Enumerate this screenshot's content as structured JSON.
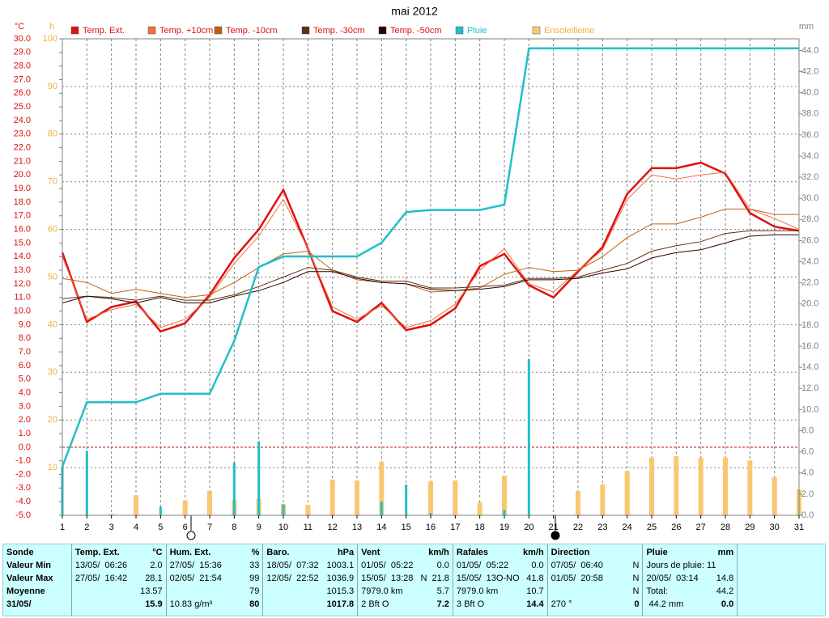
{
  "chart_data": {
    "type": "line",
    "title": "mai 2012",
    "ylabel": "°C",
    "y2label": "mm",
    "y3label": "h",
    "x": [
      1,
      2,
      3,
      4,
      5,
      6,
      7,
      8,
      9,
      10,
      11,
      12,
      13,
      14,
      15,
      16,
      17,
      18,
      19,
      20,
      21,
      22,
      23,
      24,
      25,
      26,
      27,
      28,
      29,
      30,
      31
    ],
    "xlim": [
      1,
      31
    ],
    "xticks": [
      1,
      2,
      3,
      4,
      5,
      6,
      7,
      8,
      9,
      10,
      11,
      12,
      13,
      14,
      15,
      16,
      17,
      18,
      19,
      20,
      21,
      22,
      23,
      24,
      25,
      26,
      27,
      28,
      29,
      30,
      31
    ],
    "ylim": [
      -5,
      30
    ],
    "yticks": [
      {
        "value": -5,
        "label": "-5.0"
      },
      {
        "value": -4,
        "label": "-4.0"
      },
      {
        "value": -3,
        "label": "-3.0"
      },
      {
        "value": -2,
        "label": "-2.0"
      },
      {
        "value": -1,
        "label": "-1.0"
      },
      {
        "value": 0,
        "label": "0.0"
      },
      {
        "value": 1,
        "label": "1.0"
      },
      {
        "value": 2,
        "label": "2.0"
      },
      {
        "value": 3,
        "label": "3.0"
      },
      {
        "value": 4,
        "label": "4.0"
      },
      {
        "value": 5,
        "label": "5.0"
      },
      {
        "value": 6,
        "label": "6.0"
      },
      {
        "value": 7,
        "label": "7.0"
      },
      {
        "value": 8,
        "label": "8.0"
      },
      {
        "value": 9,
        "label": "9.0"
      },
      {
        "value": 10,
        "label": "10.0"
      },
      {
        "value": 11,
        "label": "11.0"
      },
      {
        "value": 12,
        "label": "12.0"
      },
      {
        "value": 13,
        "label": "13.0"
      },
      {
        "value": 14,
        "label": "14.0"
      },
      {
        "value": 15,
        "label": "15.0"
      },
      {
        "value": 16,
        "label": "16.0"
      },
      {
        "value": 17,
        "label": "17.0"
      },
      {
        "value": 18,
        "label": "18.0"
      },
      {
        "value": 19,
        "label": "19.0"
      },
      {
        "value": 20,
        "label": "20.0"
      },
      {
        "value": 21,
        "label": "21.0"
      },
      {
        "value": 22,
        "label": "22.0"
      },
      {
        "value": 23,
        "label": "23.0"
      },
      {
        "value": 24,
        "label": "24.0"
      },
      {
        "value": 25,
        "label": "25.0"
      },
      {
        "value": 26,
        "label": "26.0"
      },
      {
        "value": 27,
        "label": "27.0"
      },
      {
        "value": 28,
        "label": "28.0"
      },
      {
        "value": 29,
        "label": "29.0"
      },
      {
        "value": 30,
        "label": "30.0"
      }
    ],
    "y2lim": [
      0,
      45.1
    ],
    "y2ticks": [
      {
        "value": 0,
        "label": "0.0"
      },
      {
        "value": 2,
        "label": "2.0"
      },
      {
        "value": 4,
        "label": "4.0"
      },
      {
        "value": 6,
        "label": "6.0"
      },
      {
        "value": 8,
        "label": "8.0"
      },
      {
        "value": 10,
        "label": "10.0"
      },
      {
        "value": 12,
        "label": "12.0"
      },
      {
        "value": 14,
        "label": "14.0"
      },
      {
        "value": 16,
        "label": "16.0"
      },
      {
        "value": 18,
        "label": "18.0"
      },
      {
        "value": 20,
        "label": "20.0"
      },
      {
        "value": 22,
        "label": "22.0"
      },
      {
        "value": 24,
        "label": "24.0"
      },
      {
        "value": 26,
        "label": "26.0"
      },
      {
        "value": 28,
        "label": "28.0"
      },
      {
        "value": 30,
        "label": "30.0"
      },
      {
        "value": 32,
        "label": "32.0"
      },
      {
        "value": 34,
        "label": "34.0"
      },
      {
        "value": 36,
        "label": "36.0"
      },
      {
        "value": 38,
        "label": "38.0"
      },
      {
        "value": 40,
        "label": "40.0"
      },
      {
        "value": 42,
        "label": "42.0"
      },
      {
        "value": 44,
        "label": "44.0"
      }
    ],
    "y3lim": [
      0,
      100
    ],
    "y3ticks": [
      10,
      20,
      30,
      40,
      50,
      60,
      70,
      80,
      90,
      100
    ],
    "grid": true,
    "zero_line": true,
    "ylabel_color": "#e01010",
    "y2label_color": "#808080",
    "y3label_color": "#f0b040",
    "series": [
      {
        "name": "Temp. Ext.",
        "color": "#e01010",
        "label_color": "#e01010",
        "style": "line",
        "width": 2.5,
        "axis": "y",
        "values": [
          14.3,
          9.2,
          10.3,
          10.7,
          8.5,
          9.1,
          11.2,
          13.9,
          16.0,
          18.9,
          14.6,
          10.0,
          9.2,
          10.6,
          8.6,
          9.0,
          10.2,
          13.3,
          14.2,
          11.9,
          11.0,
          12.9,
          14.7,
          18.6,
          20.5,
          20.5,
          20.9,
          20.1,
          17.2,
          16.2,
          15.9
        ]
      },
      {
        "name": "Temp. +10cm",
        "color": "#f07040",
        "label_color": "#e01010",
        "style": "line",
        "width": 1,
        "axis": "y",
        "values": [
          14.0,
          9.4,
          10.1,
          10.5,
          8.8,
          9.4,
          11.0,
          13.5,
          15.5,
          18.2,
          14.6,
          10.3,
          9.4,
          10.4,
          8.8,
          9.3,
          10.5,
          13.0,
          14.6,
          12.0,
          11.4,
          13.0,
          14.5,
          18.2,
          20.0,
          19.7,
          20.0,
          20.2,
          17.5,
          16.8,
          16.0
        ]
      },
      {
        "name": "Temp. -10cm",
        "color": "#c06010",
        "label_color": "#e01010",
        "style": "line",
        "width": 1,
        "axis": "y",
        "values": [
          12.4,
          12.1,
          11.3,
          11.6,
          11.3,
          11.0,
          11.2,
          12.1,
          13.2,
          14.2,
          14.4,
          13.0,
          12.3,
          12.1,
          12.0,
          11.4,
          11.5,
          11.7,
          12.7,
          13.2,
          12.9,
          13.0,
          14.0,
          15.4,
          16.4,
          16.4,
          16.9,
          17.5,
          17.5,
          17.1,
          17.1
        ]
      },
      {
        "name": "Temp. -30cm",
        "color": "#603010",
        "label_color": "#e01010",
        "style": "line",
        "width": 1,
        "axis": "y",
        "values": [
          10.9,
          11.1,
          11.0,
          10.8,
          11.1,
          10.8,
          10.8,
          11.2,
          11.8,
          12.5,
          13.2,
          13.0,
          12.5,
          12.2,
          12.2,
          11.7,
          11.7,
          11.8,
          11.9,
          12.4,
          12.4,
          12.5,
          13.0,
          13.5,
          14.4,
          14.8,
          15.1,
          15.7,
          15.9,
          15.9,
          15.9
        ]
      },
      {
        "name": "Temp. -50cm",
        "color": "#300000",
        "label_color": "#e01010",
        "style": "line",
        "width": 1,
        "axis": "y",
        "values": [
          10.6,
          11.1,
          10.9,
          10.6,
          11.0,
          10.6,
          10.6,
          11.1,
          11.5,
          12.1,
          12.9,
          12.9,
          12.4,
          12.1,
          12.0,
          11.6,
          11.5,
          11.6,
          11.8,
          12.3,
          12.3,
          12.4,
          12.8,
          13.1,
          13.9,
          14.3,
          14.5,
          15.0,
          15.5,
          15.6,
          15.6
        ]
      },
      {
        "name": "Pluie",
        "color": "#20c0c8",
        "label_color": "#20c0c8",
        "style": "line",
        "width": 2.5,
        "axis": "y2",
        "values": [
          4.6,
          10.7,
          10.7,
          10.7,
          11.5,
          11.5,
          11.5,
          16.5,
          23.5,
          24.5,
          24.5,
          24.5,
          24.5,
          25.8,
          28.7,
          28.9,
          28.9,
          28.9,
          29.4,
          44.2,
          44.2,
          44.2,
          44.2,
          44.2,
          44.2,
          44.2,
          44.2,
          44.2,
          44.2,
          44.2,
          44.2
        ]
      },
      {
        "name": "Ensoleilleme",
        "color": "#f8c870",
        "label_color": "#f0b040",
        "style": "bar",
        "width": 6,
        "axis": "y3",
        "values": [
          0,
          0,
          0.3,
          4.2,
          0,
          3.1,
          5.1,
          3.2,
          3.4,
          2.4,
          2.2,
          7.5,
          7.3,
          11.2,
          0,
          7.1,
          7.3,
          2.7,
          8.3,
          0,
          0,
          5.1,
          6.5,
          9.3,
          12.1,
          12.4,
          12.1,
          12.1,
          11.5,
          8.0,
          5.4
        ]
      },
      {
        "color": "#20c0c8",
        "style": "bar",
        "width": 3,
        "axis": "y2",
        "values": [
          4.6,
          6.1,
          0,
          0,
          0.8,
          0,
          0,
          5.0,
          7.0,
          1.0,
          0,
          0,
          0,
          1.3,
          2.9,
          0.2,
          0,
          0,
          0.5,
          14.8,
          0,
          0,
          0,
          0,
          0,
          0,
          0,
          0,
          0,
          0,
          0
        ]
      }
    ]
  },
  "stats": {
    "labels": [
      "Sonde",
      "Valeur Min",
      "Valeur Max",
      "Moyenne",
      "31/05/"
    ],
    "columns": [
      {
        "title": "Temp. Ext.",
        "unit": "°C",
        "rows": [
          {
            "left": "13/05/  06:26",
            "right": "2.0"
          },
          {
            "left": "27/05/  16:42",
            "right": "28.1"
          },
          {
            "right": "13.57"
          },
          {
            "right": "15.9"
          }
        ]
      },
      {
        "title": "Hum. Ext.",
        "unit": "%",
        "rows": [
          {
            "left": "27/05/  15:36",
            "right": "33"
          },
          {
            "left": "02/05/  21:54",
            "right": "99"
          },
          {
            "right": "79"
          },
          {
            "left": "10.83 g/m³",
            "right": "80"
          }
        ]
      },
      {
        "title": "Baro.",
        "unit": "hPa",
        "rows": [
          {
            "left": "18/05/  07:32",
            "right": "1003.1"
          },
          {
            "left": "12/05/  22:52",
            "right": "1036.9"
          },
          {
            "right": "1015.3"
          },
          {
            "right": "1017.8"
          }
        ]
      },
      {
        "title": "Vent",
        "unit": "km/h",
        "rows": [
          {
            "left": "01/05/  05:22",
            "right": "0.0"
          },
          {
            "left": "15/05/  13:28",
            "mid": "N",
            "right": "21.8"
          },
          {
            "left": "7979.0 km",
            "right": "5.7"
          },
          {
            "left": "2 Bft O",
            "right": "7.2"
          }
        ]
      },
      {
        "title": "Rafales",
        "unit": "km/h",
        "rows": [
          {
            "left": "01/05/  05:22",
            "right": "0.0"
          },
          {
            "left": "15/05/  13O-NO",
            "right": "41.8"
          },
          {
            "left": "7979.0 km",
            "right": "10.7"
          },
          {
            "left": "3 Bft O",
            "right": "14.4"
          }
        ]
      },
      {
        "title": "Direction",
        "rows": [
          {
            "left": "07/05/  06:40",
            "right": "N"
          },
          {
            "left": "01/05/  20:58",
            "right": "N"
          },
          {
            "right": "N"
          },
          {
            "left": "270 °",
            "right": "0"
          }
        ]
      },
      {
        "title": "Pluie",
        "unit": "mm",
        "rows": [
          {
            "left": "Jours de pluie: 11"
          },
          {
            "left": "20/05/  03:14",
            "right": "14.8"
          },
          {
            "left": "Total:",
            "right": "44.2"
          },
          {
            "left": " 44.2 mm",
            "right": "0.0"
          }
        ]
      }
    ]
  }
}
